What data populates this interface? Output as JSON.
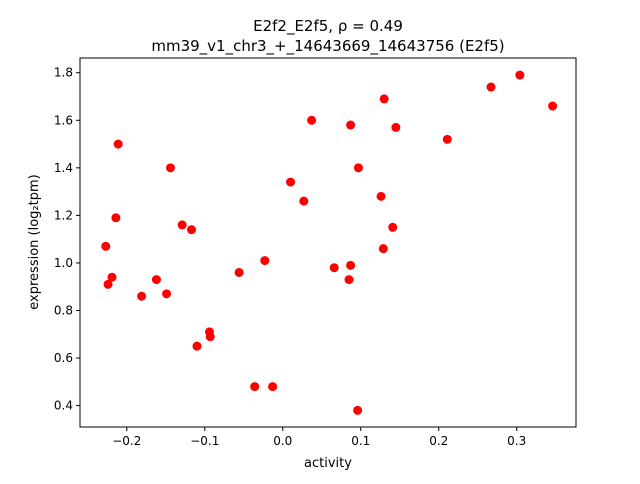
{
  "chart_data": {
    "type": "scatter",
    "title_line1": "E2f2_E2f5, ρ = 0.49",
    "title_line2": "mm39_v1_chr3_+_14643669_14643756 (E2f5)",
    "xlabel": "activity",
    "ylabel": "expression (log₂tpm)",
    "xlim": [
      -0.26,
      0.376
    ],
    "ylim": [
      0.31,
      1.862
    ],
    "xticks": [
      -0.2,
      -0.1,
      0.0,
      0.1,
      0.2,
      0.3
    ],
    "xtick_labels": [
      "−0.2",
      "−0.1",
      "0.0",
      "0.1",
      "0.2",
      "0.3"
    ],
    "yticks": [
      0.4,
      0.6,
      0.8,
      1.0,
      1.2,
      1.4,
      1.6,
      1.8
    ],
    "ytick_labels": [
      "0.4",
      "0.6",
      "0.8",
      "1.0",
      "1.2",
      "1.4",
      "1.6",
      "1.8"
    ],
    "marker_color": "#ff0000",
    "grid": false,
    "points": [
      [
        0.13,
        1.69
      ],
      [
        0.304,
        1.79
      ],
      [
        0.346,
        1.66
      ],
      [
        0.267,
        1.74
      ],
      [
        0.037,
        1.6
      ],
      [
        0.087,
        1.58
      ],
      [
        0.145,
        1.57
      ],
      [
        0.211,
        1.52
      ],
      [
        -0.211,
        1.5
      ],
      [
        -0.144,
        1.4
      ],
      [
        0.097,
        1.4
      ],
      [
        0.01,
        1.34
      ],
      [
        0.126,
        1.28
      ],
      [
        0.027,
        1.26
      ],
      [
        -0.214,
        1.19
      ],
      [
        -0.129,
        1.16
      ],
      [
        -0.117,
        1.14
      ],
      [
        0.141,
        1.15
      ],
      [
        -0.227,
        1.07
      ],
      [
        0.129,
        1.06
      ],
      [
        -0.023,
        1.01
      ],
      [
        -0.056,
        0.96
      ],
      [
        0.066,
        0.98
      ],
      [
        0.087,
        0.99
      ],
      [
        -0.162,
        0.93
      ],
      [
        -0.219,
        0.94
      ],
      [
        -0.224,
        0.91
      ],
      [
        0.085,
        0.93
      ],
      [
        -0.181,
        0.86
      ],
      [
        -0.149,
        0.87
      ],
      [
        -0.094,
        0.71
      ],
      [
        -0.093,
        0.69
      ],
      [
        -0.11,
        0.65
      ],
      [
        -0.036,
        0.48
      ],
      [
        -0.013,
        0.48
      ],
      [
        0.096,
        0.38
      ]
    ]
  }
}
